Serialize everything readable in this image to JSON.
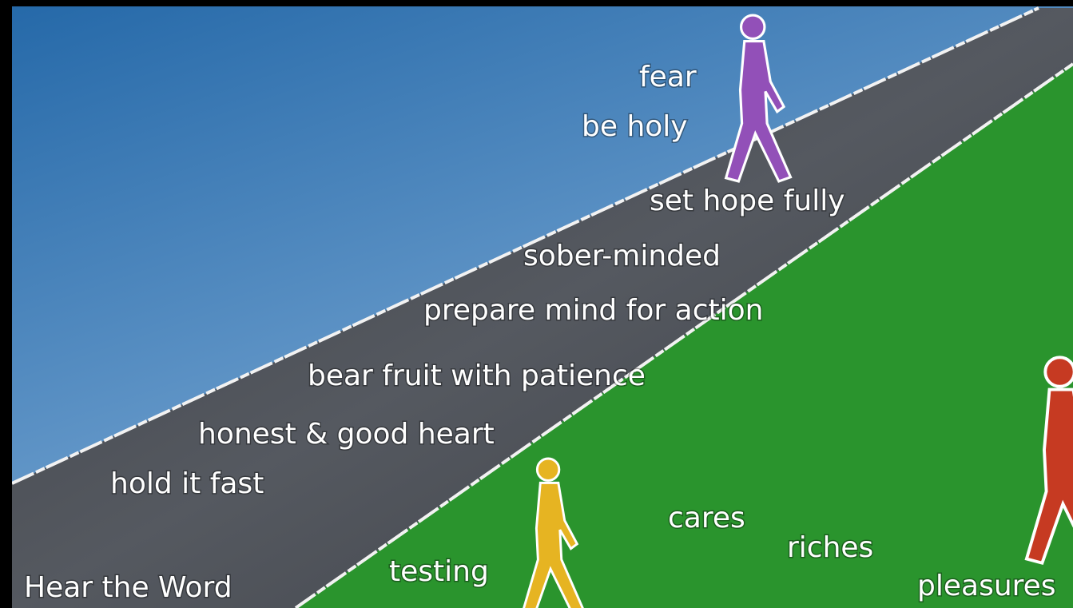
{
  "start": "Hear the Word",
  "road_labels": [
    "hold it fast",
    "honest & good heart",
    "bear fruit with patience",
    "prepare mind for action",
    "sober-minded",
    "set hope fully",
    "be holy",
    "fear"
  ],
  "field_labels": [
    "testing",
    "cares",
    "riches",
    "pleasures"
  ]
}
